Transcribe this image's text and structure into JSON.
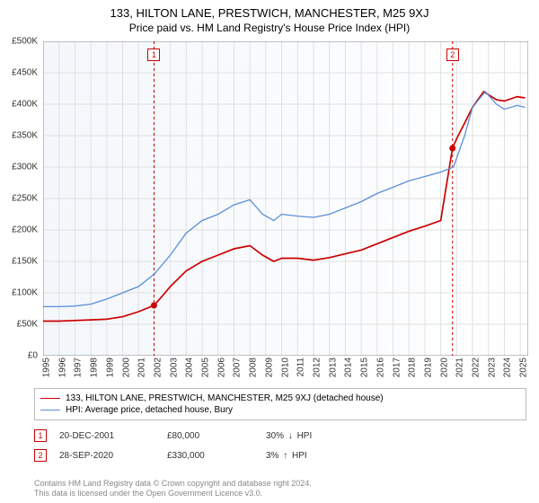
{
  "title": "133, HILTON LANE, PRESTWICH, MANCHESTER, M25 9XJ",
  "subtitle": "Price paid vs. HM Land Registry's House Price Index (HPI)",
  "chart": {
    "type": "line",
    "background_color": "#ffffff",
    "plot_background_start": "#f4f7fb",
    "plot_background_end": "#ffffff",
    "grid_color": "#e0e0e0",
    "axis_color": "#888888",
    "x_years": [
      1995,
      1996,
      1997,
      1998,
      1999,
      2000,
      2001,
      2002,
      2003,
      2004,
      2005,
      2006,
      2007,
      2008,
      2009,
      2010,
      2011,
      2012,
      2013,
      2014,
      2015,
      2016,
      2017,
      2018,
      2019,
      2020,
      2021,
      2022,
      2023,
      2024,
      2025
    ],
    "xlim": [
      1995,
      2025.5
    ],
    "ylim": [
      0,
      500000
    ],
    "ytick_step": 50000,
    "yticks_labels": [
      "£0",
      "£50K",
      "£100K",
      "£150K",
      "£200K",
      "£250K",
      "£300K",
      "£350K",
      "£400K",
      "£450K",
      "£500K"
    ],
    "series": [
      {
        "name": "133, HILTON LANE, PRESTWICH, MANCHESTER, M25 9XJ (detached house)",
        "color": "#cc0000",
        "line_width": 1.7,
        "data_x": [
          1995.0,
          1996,
          1997,
          1998,
          1999,
          2000,
          2001,
          2001.97,
          2002.5,
          2003,
          2004,
          2005,
          2006,
          2007,
          2008,
          2008.8,
          2009.5,
          2010,
          2011,
          2012,
          2013,
          2014,
          2015,
          2016,
          2017,
          2018,
          2019,
          2020,
          2020.74,
          2021,
          2021.5,
          2022,
          2022.7,
          2023.5,
          2024,
          2024.8,
          2025.3
        ],
        "data_y": [
          55000,
          55000,
          56000,
          57000,
          58000,
          62000,
          70000,
          80000,
          95000,
          110000,
          135000,
          150000,
          160000,
          170000,
          175000,
          160000,
          150000,
          155000,
          155000,
          152000,
          156000,
          162000,
          168000,
          178000,
          188000,
          198000,
          206000,
          215000,
          330000,
          345000,
          370000,
          395000,
          420000,
          407000,
          405000,
          412000,
          410000
        ]
      },
      {
        "name": "HPI: Average price, detached house, Bury",
        "color": "#5b8fd6",
        "line_width": 1.3,
        "data_x": [
          1995.0,
          1996,
          1997,
          1998,
          1999,
          2000,
          2001,
          2002,
          2003,
          2004,
          2005,
          2006,
          2007,
          2008,
          2008.8,
          2009.5,
          2010,
          2011,
          2012,
          2013,
          2014,
          2015,
          2016,
          2017,
          2018,
          2019,
          2020,
          2020.8,
          2021.5,
          2022,
          2022.8,
          2023.5,
          2024,
          2024.8,
          2025.3
        ],
        "data_y": [
          78000,
          78000,
          79000,
          82000,
          90000,
          100000,
          110000,
          130000,
          160000,
          195000,
          215000,
          225000,
          240000,
          248000,
          225000,
          215000,
          225000,
          222000,
          220000,
          225000,
          235000,
          245000,
          258000,
          268000,
          278000,
          285000,
          292000,
          300000,
          350000,
          395000,
          420000,
          400000,
          392000,
          398000,
          395000
        ]
      }
    ],
    "markers": [
      {
        "n": "1",
        "color": "#cc0000",
        "x": 2001.97,
        "y": 80000,
        "date": "20-DEC-2001",
        "price": "£80,000",
        "pct": "30%",
        "direction": "down",
        "rel": "HPI"
      },
      {
        "n": "2",
        "color": "#cc0000",
        "x": 2020.74,
        "y": 330000,
        "date": "28-SEP-2020",
        "price": "£330,000",
        "pct": "3%",
        "direction": "up",
        "rel": "HPI"
      }
    ],
    "label_fontsize": 10,
    "title_fontsize": 13
  },
  "footer": {
    "line1": "Contains HM Land Registry data © Crown copyright and database right 2024.",
    "line2": "This data is licensed under the Open Government Licence v3.0."
  }
}
